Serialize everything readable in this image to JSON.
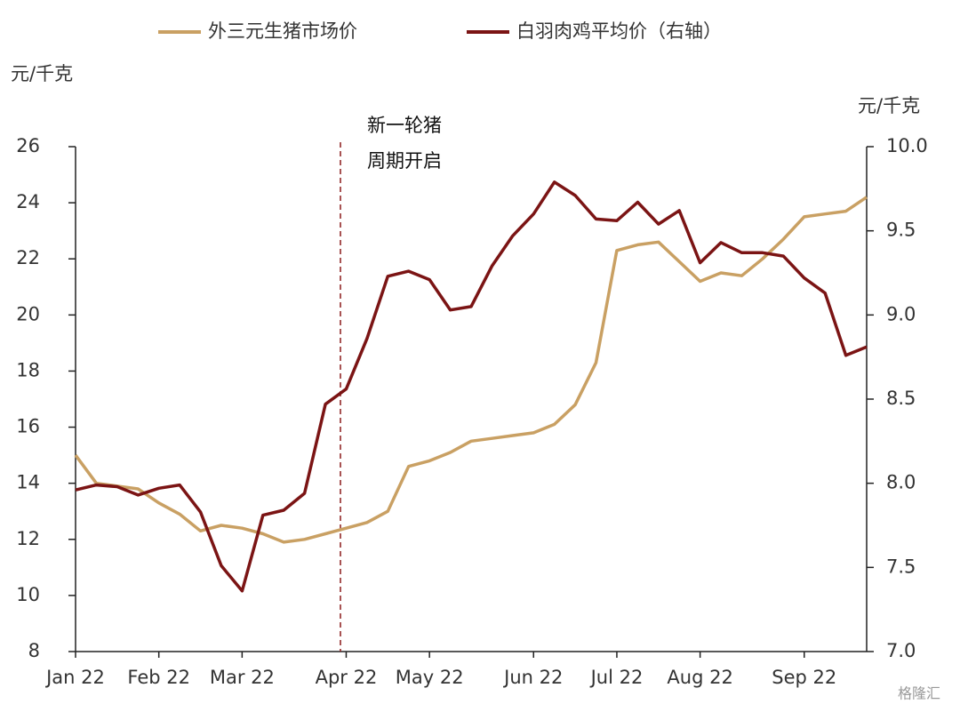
{
  "chart_data": {
    "type": "line",
    "legend_position": "top",
    "y_label": "元/千克",
    "y2_label": "元/千克",
    "annotation": [
      "新一轮猪",
      "周期开启"
    ],
    "watermark": "格隆汇",
    "categories": [
      "Jan 22",
      null,
      null,
      null,
      "Feb 22",
      null,
      null,
      null,
      "Mar 22",
      null,
      null,
      null,
      null,
      "Apr 22",
      null,
      null,
      null,
      "May 22",
      null,
      null,
      null,
      null,
      "Jun 22",
      null,
      null,
      null,
      "Jul 22",
      null,
      null,
      null,
      "Aug 22",
      null,
      null,
      null,
      null,
      "Sep 22",
      null,
      null,
      null
    ],
    "series": [
      {
        "name": "外三元生猪市场价",
        "color": "#c9a063",
        "values": [
          15.0,
          14.0,
          13.9,
          13.8,
          13.3,
          12.9,
          12.3,
          12.5,
          12.4,
          12.2,
          11.9,
          12.0,
          12.2,
          12.4,
          12.6,
          13.0,
          14.6,
          14.8,
          15.1,
          15.5,
          15.6,
          15.7,
          15.8,
          16.1,
          16.8,
          18.3,
          22.3,
          22.5,
          22.6,
          21.9,
          21.2,
          21.5,
          21.4,
          22.0,
          22.7,
          23.5,
          23.6,
          23.7,
          24.2
        ]
      },
      {
        "name": "白羽肉鸡平均价（右轴）",
        "color": "#7b1414",
        "axis": "y2",
        "values": [
          7.96,
          7.99,
          7.98,
          7.93,
          7.97,
          7.99,
          7.83,
          7.51,
          7.36,
          7.81,
          7.84,
          7.94,
          8.47,
          8.56,
          8.86,
          9.23,
          9.26,
          9.21,
          9.03,
          9.05,
          9.29,
          9.47,
          9.6,
          9.79,
          9.71,
          9.57,
          9.56,
          9.67,
          9.54,
          9.62,
          9.31,
          9.43,
          9.37,
          9.37,
          9.35,
          9.22,
          9.13,
          8.76,
          8.81
        ]
      }
    ],
    "ylim": [
      8,
      26
    ],
    "yticks": [
      8,
      10,
      12,
      14,
      16,
      18,
      20,
      22,
      24,
      26
    ],
    "y2lim": [
      7,
      10
    ],
    "y2ticks": [
      {
        "value": 7,
        "label": "7.0"
      },
      {
        "value": 7.5,
        "label": "7.5"
      },
      {
        "value": 8,
        "label": "8.0"
      },
      {
        "value": 8.5,
        "label": "8.5"
      },
      {
        "value": 9,
        "label": "9.0"
      },
      {
        "value": 9.5,
        "label": "9.5"
      },
      {
        "value": 10,
        "label": "10.0"
      }
    ]
  }
}
